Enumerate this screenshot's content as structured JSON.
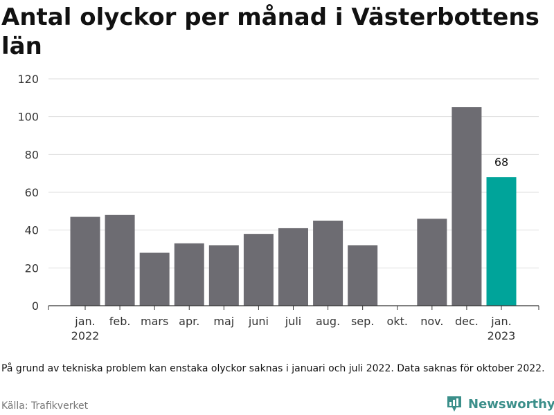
{
  "title": "Antal olyckor per månad i Västerbottens län",
  "note": "På grund av tekniska problem kan enstaka olyckor saknas i januari och juli 2022. Data saknas för oktober 2022.",
  "source": "Källa: Trafikverket",
  "brand": {
    "name": "Newsworthy",
    "color": "#3b8f8a"
  },
  "colors": {
    "bar": "#6d6c72",
    "highlight": "#00a49a",
    "grid": "#dddddd",
    "axis": "#333333"
  },
  "chart_data": {
    "type": "bar",
    "title": "Antal olyckor per månad i Västerbottens län",
    "xlabel": "",
    "ylabel": "",
    "ylim": [
      0,
      120
    ],
    "yticks": [
      0,
      20,
      40,
      60,
      80,
      100,
      120
    ],
    "grid": true,
    "categories": [
      "jan.\n2022",
      "feb.",
      "mars",
      "apr.",
      "maj",
      "juni",
      "juli",
      "aug.",
      "sep.",
      "okt.",
      "nov.",
      "dec.",
      "jan.\n2023"
    ],
    "values": [
      47,
      48,
      28,
      33,
      32,
      38,
      41,
      45,
      32,
      null,
      46,
      105,
      68
    ],
    "highlight_index": 12,
    "data_labels": {
      "12": "68"
    }
  }
}
